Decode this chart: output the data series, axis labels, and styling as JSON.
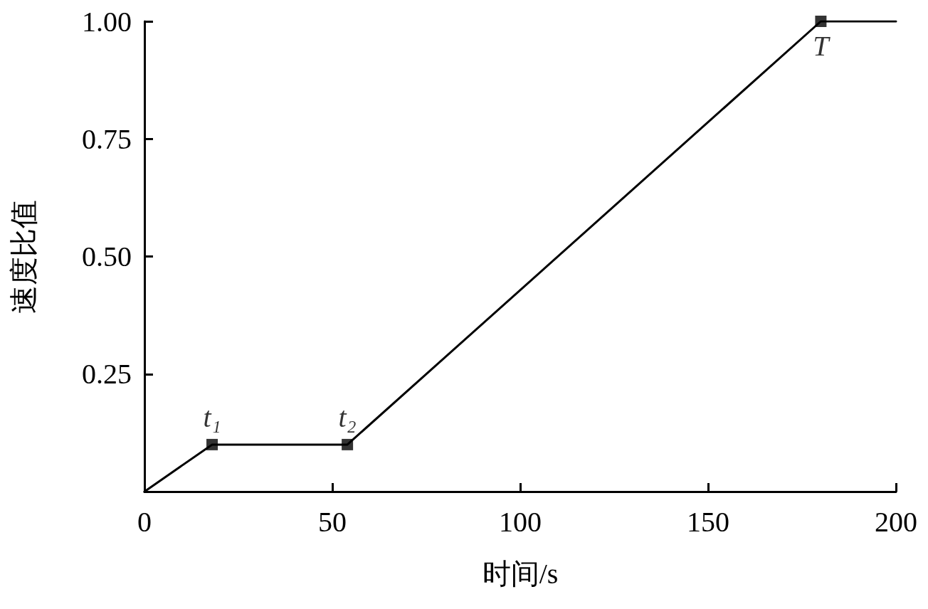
{
  "chart_data": {
    "type": "line",
    "xlabel": "时间/s",
    "ylabel": "速度比值",
    "xlim": [
      0,
      200
    ],
    "xticks": [
      0,
      50,
      100,
      150,
      200
    ],
    "ylim": [
      0,
      1
    ],
    "yticks": [
      {
        "value": 0,
        "label": null
      },
      0.25,
      {
        "value": 0.5,
        "label": "0.50"
      },
      0.75,
      {
        "value": 1,
        "label": "1.00"
      }
    ],
    "grid": false,
    "series": [
      {
        "color": "#000000",
        "marker": "none",
        "line_style": "solid",
        "x": [
          0,
          18,
          54,
          180,
          200
        ],
        "values": [
          0,
          0.1,
          0.1,
          1,
          1
        ]
      },
      {
        "type": "scatter",
        "color": "#000000",
        "marker": "square",
        "x": [
          18,
          54,
          180
        ],
        "values": [
          0.1,
          0.1,
          1
        ]
      }
    ],
    "annotations": [
      {
        "text": "t₁",
        "x": 18,
        "y": 0.1
      },
      {
        "text": "t₂",
        "x": 54,
        "y": 0.1
      },
      {
        "text": "T",
        "x": 180,
        "y": 1
      }
    ]
  }
}
